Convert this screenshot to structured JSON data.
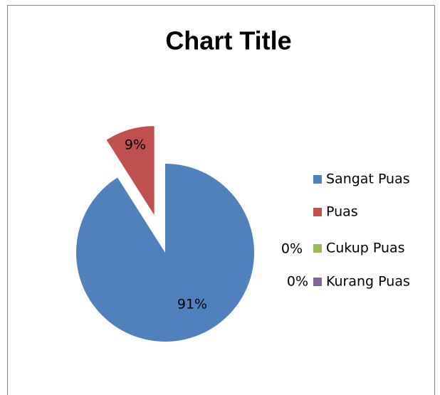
{
  "chart_data": {
    "type": "pie",
    "title": "Chart Title",
    "categories": [
      "Sangat Puas",
      "Puas",
      "Cukup Puas",
      "Kurang Puas"
    ],
    "values": [
      91,
      9,
      0,
      0
    ],
    "value_labels": [
      "91%",
      "9%",
      "0%",
      "0%"
    ],
    "colors": [
      "#4f81bd",
      "#c0504d",
      "#9bbb59",
      "#8064a2"
    ],
    "exploded": [
      "Puas"
    ],
    "legend": "right"
  }
}
